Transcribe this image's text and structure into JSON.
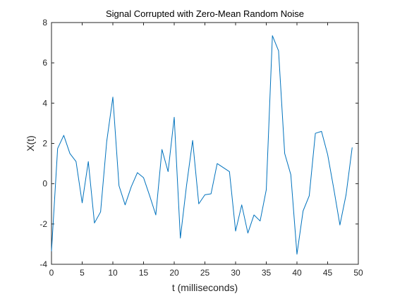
{
  "chart_data": {
    "type": "line",
    "title": "Signal Corrupted with Zero-Mean Random Noise",
    "xlabel": "t (milliseconds)",
    "ylabel": "X(t)",
    "xlim": [
      0,
      50
    ],
    "ylim": [
      -4,
      8
    ],
    "xticks": [
      0,
      5,
      10,
      15,
      20,
      25,
      30,
      35,
      40,
      45,
      50
    ],
    "yticks": [
      -4,
      -2,
      0,
      2,
      4,
      6,
      8
    ],
    "grid": false,
    "series": [
      {
        "color": "#0072BD",
        "x": [
          0,
          1,
          2,
          3,
          4,
          5,
          6,
          7,
          8,
          9,
          10,
          11,
          12,
          13,
          14,
          15,
          16,
          17,
          18,
          19,
          20,
          21,
          22,
          23,
          24,
          25,
          26,
          27,
          28,
          29,
          30,
          31,
          32,
          33,
          34,
          35,
          36,
          37,
          38,
          39,
          40,
          41,
          42,
          43,
          44,
          45,
          46,
          47,
          48,
          49
        ],
        "y": [
          -3.35,
          1.75,
          2.4,
          1.5,
          1.1,
          -0.95,
          1.1,
          -1.95,
          -1.4,
          2.1,
          4.3,
          -0.1,
          -1.05,
          -0.15,
          0.55,
          0.3,
          -0.6,
          -1.55,
          1.7,
          0.6,
          3.3,
          -2.7,
          -0.1,
          2.15,
          -1.0,
          -0.55,
          -0.5,
          1.0,
          0.8,
          0.6,
          -2.35,
          -1.05,
          -2.45,
          -1.55,
          -1.85,
          -0.3,
          7.35,
          6.6,
          1.5,
          0.45,
          -3.5,
          -1.35,
          -0.6,
          2.5,
          2.6,
          1.45,
          -0.25,
          -2.05,
          -0.55,
          1.8
        ]
      }
    ]
  }
}
